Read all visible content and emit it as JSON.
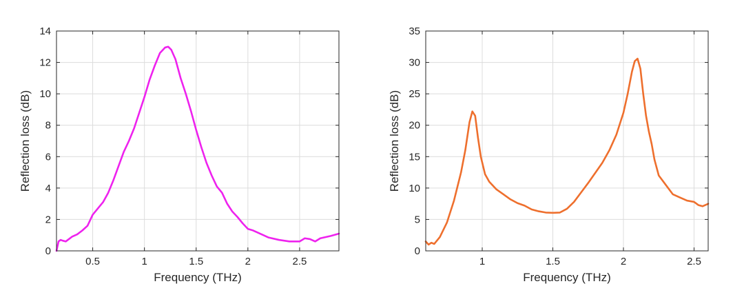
{
  "chart_data": [
    {
      "type": "line",
      "xlabel": "Frequency (THz)",
      "ylabel": "Reflection loss (dB)",
      "xlim": [
        0.15,
        2.88
      ],
      "ylim": [
        0,
        14
      ],
      "xticks": [
        0.5,
        1,
        1.5,
        2,
        2.5
      ],
      "xtick_labels": [
        "0.5",
        "1",
        "1.5",
        "2",
        "2.5"
      ],
      "yticks": [
        0,
        2,
        4,
        6,
        8,
        10,
        12,
        14
      ],
      "ytick_labels": [
        "0",
        "2",
        "4",
        "6",
        "8",
        "10",
        "12",
        "14"
      ],
      "grid": true,
      "series": [
        {
          "color": "#ee22ee",
          "x": [
            0.15,
            0.17,
            0.19,
            0.21,
            0.24,
            0.27,
            0.3,
            0.35,
            0.4,
            0.45,
            0.5,
            0.55,
            0.6,
            0.65,
            0.7,
            0.75,
            0.8,
            0.85,
            0.9,
            0.95,
            1.0,
            1.05,
            1.1,
            1.15,
            1.2,
            1.23,
            1.26,
            1.3,
            1.35,
            1.4,
            1.45,
            1.5,
            1.55,
            1.6,
            1.65,
            1.7,
            1.75,
            1.8,
            1.85,
            1.9,
            1.95,
            2.0,
            2.05,
            2.1,
            2.2,
            2.3,
            2.4,
            2.5,
            2.55,
            2.6,
            2.65,
            2.7,
            2.8,
            2.88
          ],
          "y": [
            0.0,
            0.6,
            0.7,
            0.65,
            0.6,
            0.75,
            0.9,
            1.05,
            1.3,
            1.6,
            2.3,
            2.7,
            3.1,
            3.7,
            4.5,
            5.4,
            6.3,
            7.0,
            7.8,
            8.8,
            9.8,
            10.9,
            11.8,
            12.6,
            12.95,
            13.0,
            12.8,
            12.2,
            11.0,
            10.0,
            8.9,
            7.7,
            6.6,
            5.6,
            4.8,
            4.1,
            3.7,
            3.0,
            2.5,
            2.15,
            1.75,
            1.4,
            1.3,
            1.15,
            0.85,
            0.7,
            0.6,
            0.6,
            0.8,
            0.75,
            0.6,
            0.8,
            0.95,
            1.1
          ]
        }
      ]
    },
    {
      "type": "line",
      "xlabel": "Frequency (THz)",
      "ylabel": "Reflection loss (dB)",
      "xlim": [
        0.6,
        2.6
      ],
      "ylim": [
        0,
        35
      ],
      "xticks": [
        1,
        1.5,
        2,
        2.5
      ],
      "xtick_labels": [
        "1",
        "1.5",
        "2",
        "2.5"
      ],
      "yticks": [
        0,
        5,
        10,
        15,
        20,
        25,
        30,
        35
      ],
      "ytick_labels": [
        "0",
        "5",
        "10",
        "15",
        "20",
        "25",
        "30",
        "35"
      ],
      "grid": true,
      "series": [
        {
          "color": "#ee6f2d",
          "x": [
            0.6,
            0.62,
            0.64,
            0.66,
            0.7,
            0.75,
            0.8,
            0.85,
            0.88,
            0.91,
            0.93,
            0.95,
            0.97,
            0.99,
            1.02,
            1.05,
            1.1,
            1.15,
            1.2,
            1.25,
            1.3,
            1.35,
            1.4,
            1.45,
            1.5,
            1.55,
            1.6,
            1.65,
            1.7,
            1.75,
            1.8,
            1.85,
            1.9,
            1.95,
            2.0,
            2.03,
            2.06,
            2.08,
            2.1,
            2.12,
            2.14,
            2.16,
            2.18,
            2.2,
            2.22,
            2.25,
            2.3,
            2.35,
            2.4,
            2.45,
            2.5,
            2.53,
            2.56,
            2.6
          ],
          "y": [
            1.5,
            1.0,
            1.3,
            1.1,
            2.2,
            4.5,
            8.0,
            12.5,
            16.0,
            20.5,
            22.2,
            21.5,
            18.0,
            15.0,
            12.2,
            11.0,
            9.8,
            9.0,
            8.2,
            7.6,
            7.2,
            6.6,
            6.3,
            6.1,
            6.05,
            6.1,
            6.7,
            7.8,
            9.3,
            10.8,
            12.4,
            14.0,
            16.0,
            18.5,
            22.0,
            25.0,
            28.5,
            30.2,
            30.6,
            29.0,
            25.0,
            21.5,
            19.0,
            17.0,
            14.5,
            12.0,
            10.5,
            9.0,
            8.5,
            8.0,
            7.8,
            7.3,
            7.1,
            7.5
          ]
        }
      ]
    }
  ]
}
